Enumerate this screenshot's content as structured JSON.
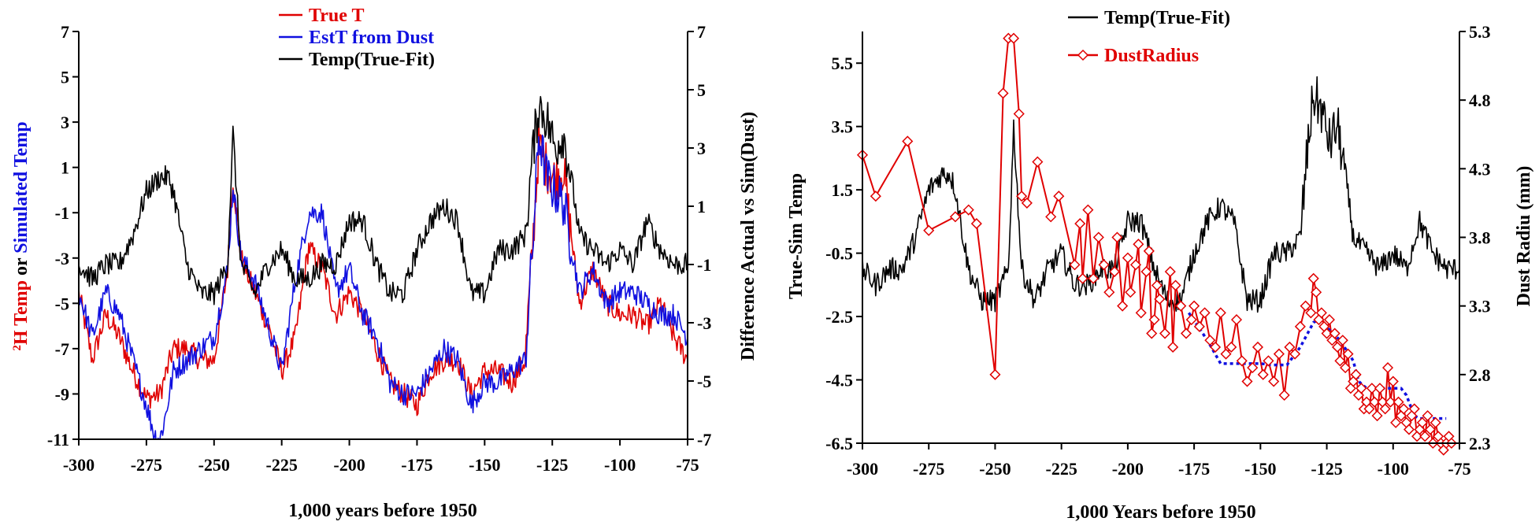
{
  "chart_data": [
    {
      "type": "line",
      "xlabel": "1,000 years before 1950",
      "ylabel_parts": [
        {
          "text": "2",
          "color": "#e00000",
          "superscript": true
        },
        {
          "text": "H Temp",
          "color": "#e00000"
        },
        {
          "text": " or ",
          "color": "#000000"
        },
        {
          "text": "Simulated Temp",
          "color": "#1010e0"
        }
      ],
      "y2label": "Difference Actual vs Sim(Dust)",
      "xlim": [
        -300,
        -75
      ],
      "ylim": [
        -11,
        7
      ],
      "y2lim": [
        -7,
        7
      ],
      "xticks": [
        -300,
        -275,
        -250,
        -225,
        -200,
        -175,
        -150,
        -125,
        -100,
        -75
      ],
      "yticks": [
        7,
        5,
        3,
        1,
        -1,
        -3,
        -5,
        -7,
        -9,
        -11
      ],
      "y2ticks": [
        7,
        5,
        3,
        1,
        -1,
        -3,
        -5,
        -7
      ],
      "legend_position": "top-center",
      "series": [
        {
          "name": "True T",
          "color": "#e00000",
          "axis": "left",
          "x": [
            -300,
            -295,
            -290,
            -285,
            -280,
            -275,
            -270,
            -265,
            -260,
            -255,
            -250,
            -245,
            -243,
            -240,
            -235,
            -230,
            -225,
            -220,
            -215,
            -210,
            -205,
            -200,
            -195,
            -190,
            -185,
            -180,
            -175,
            -170,
            -165,
            -160,
            -155,
            -150,
            -145,
            -140,
            -135,
            -132,
            -130,
            -127,
            -124,
            -121,
            -118,
            -115,
            -110,
            -105,
            -100,
            -95,
            -90,
            -85,
            -80,
            -75
          ],
          "y": [
            -4.5,
            -7.5,
            -5.5,
            -6.5,
            -8,
            -9.2,
            -9,
            -7,
            -7,
            -7.5,
            -7.5,
            -3.5,
            0.5,
            -3,
            -4.5,
            -6,
            -8,
            -6.5,
            -2.5,
            -3.5,
            -5.5,
            -4.5,
            -5.5,
            -7,
            -8.5,
            -9,
            -9.5,
            -8,
            -7.5,
            -7.5,
            -9,
            -8,
            -8,
            -8.5,
            -7.5,
            -2,
            2,
            1,
            0.5,
            1,
            -2,
            -5,
            -3.5,
            -5,
            -5.5,
            -5.5,
            -6,
            -5,
            -6.5,
            -7.5
          ]
        },
        {
          "name": "EstT from Dust",
          "color": "#1010e0",
          "axis": "left",
          "x": [
            -300,
            -295,
            -290,
            -285,
            -280,
            -275,
            -272,
            -270,
            -268,
            -265,
            -260,
            -255,
            -250,
            -245,
            -243,
            -240,
            -235,
            -230,
            -225,
            -220,
            -215,
            -210,
            -205,
            -200,
            -195,
            -190,
            -185,
            -180,
            -175,
            -170,
            -165,
            -160,
            -155,
            -150,
            -145,
            -140,
            -135,
            -132,
            -130,
            -127,
            -124,
            -121,
            -118,
            -115,
            -110,
            -105,
            -100,
            -95,
            -90,
            -85,
            -80,
            -75
          ],
          "y": [
            -4.5,
            -6.5,
            -4.5,
            -5.5,
            -7.5,
            -9.5,
            -10.8,
            -11,
            -10,
            -8,
            -7.5,
            -7,
            -6.5,
            -3.5,
            0.2,
            -3,
            -4,
            -6,
            -8,
            -4,
            -1,
            -1,
            -4.5,
            -3.5,
            -5.5,
            -6.5,
            -8.5,
            -9,
            -9,
            -8,
            -7,
            -7.5,
            -9.5,
            -8.5,
            -8.5,
            -8,
            -7.5,
            -2,
            2.5,
            0.5,
            0,
            -0.5,
            -2.5,
            -4.5,
            -3.5,
            -5,
            -4.5,
            -4.5,
            -5,
            -5.5,
            -5.5,
            -6.5
          ]
        },
        {
          "name": "Temp(True-Fit)",
          "color": "#000000",
          "axis": "right",
          "x": [
            -300,
            -295,
            -290,
            -285,
            -280,
            -275,
            -270,
            -267,
            -265,
            -260,
            -255,
            -250,
            -245,
            -243,
            -240,
            -235,
            -230,
            -225,
            -220,
            -215,
            -210,
            -205,
            -200,
            -195,
            -190,
            -185,
            -180,
            -175,
            -170,
            -165,
            -160,
            -155,
            -150,
            -145,
            -140,
            -135,
            -132,
            -130,
            -127,
            -124,
            -121,
            -118,
            -115,
            -110,
            -105,
            -100,
            -95,
            -90,
            -85,
            -80,
            -75
          ],
          "y": [
            -1,
            -1.5,
            -1,
            -1,
            0,
            1.5,
            2,
            2,
            1.5,
            -1,
            -2,
            -2,
            -1,
            3.5,
            -1,
            -2,
            -1,
            -0.5,
            -1.5,
            -1.5,
            -1,
            -1,
            0.5,
            0.5,
            -1,
            -2,
            -2,
            -0.5,
            0.5,
            1,
            0.5,
            -2,
            -2,
            -0.5,
            -0.5,
            0,
            3,
            4.5,
            4,
            3,
            3.5,
            2,
            0,
            -0.5,
            -1,
            -0.5,
            -1,
            0.5,
            -0.5,
            -1,
            -1
          ]
        }
      ]
    },
    {
      "type": "line",
      "xlabel": "1,000 Years before 1950",
      "ylabel": "True-Sim Temp",
      "y2label": "Dust Radiu (mm)",
      "xlim": [
        -300,
        -75
      ],
      "ylim": [
        -6.5,
        6.5
      ],
      "y2lim": [
        2.3,
        5.3
      ],
      "xticks": [
        -300,
        -275,
        -250,
        -225,
        -200,
        -175,
        -150,
        -125,
        -100,
        -75
      ],
      "yticks": [
        5.5,
        3.5,
        1.5,
        -0.5,
        -2.5,
        -4.5,
        -6.5
      ],
      "y2ticks": [
        5.3,
        4.8,
        4.3,
        3.8,
        3.3,
        2.8,
        2.3
      ],
      "legend_position": "top-center",
      "series": [
        {
          "name": "Temp(True-Fit)",
          "color": "#000000",
          "axis": "left",
          "x": [
            -300,
            -295,
            -290,
            -285,
            -280,
            -275,
            -270,
            -267,
            -265,
            -260,
            -255,
            -250,
            -245,
            -243,
            -240,
            -235,
            -230,
            -225,
            -220,
            -215,
            -210,
            -205,
            -200,
            -195,
            -190,
            -185,
            -180,
            -175,
            -170,
            -165,
            -160,
            -155,
            -150,
            -145,
            -140,
            -135,
            -132,
            -130,
            -127,
            -124,
            -121,
            -118,
            -115,
            -110,
            -105,
            -100,
            -95,
            -90,
            -85,
            -80,
            -75
          ],
          "y": [
            -1,
            -1.5,
            -1,
            -1,
            0,
            1.5,
            2,
            2,
            1.5,
            -1,
            -2,
            -2,
            -1,
            3.5,
            -1,
            -2,
            -1,
            -0.5,
            -1.5,
            -1.5,
            -1,
            -1,
            0.5,
            0.5,
            -1,
            -2,
            -2,
            -0.5,
            0.5,
            1,
            0.5,
            -2,
            -2,
            -0.5,
            -0.5,
            0,
            3,
            4.5,
            4,
            3,
            3.5,
            2,
            0,
            -0.5,
            -1,
            -0.5,
            -1,
            0.5,
            -0.5,
            -1,
            -1
          ]
        },
        {
          "name": "DustRadius",
          "color": "#e00000",
          "axis": "right",
          "marker": "diamond",
          "x": [
            -300,
            -295,
            -283,
            -275,
            -265,
            -260,
            -257,
            -250,
            -247,
            -245,
            -243,
            -241,
            -240,
            -238,
            -234,
            -229,
            -226,
            -220,
            -218,
            -217,
            -215,
            -213,
            -211,
            -209,
            -207,
            -205,
            -204,
            -202,
            -200,
            -199,
            -197,
            -196,
            -195,
            -193,
            -192,
            -191,
            -190,
            -189,
            -188,
            -186,
            -184,
            -183,
            -182,
            -180,
            -178,
            -176,
            -175,
            -173,
            -171,
            -169,
            -167,
            -165,
            -163,
            -161,
            -159,
            -157,
            -155,
            -153,
            -151,
            -149,
            -147,
            -145,
            -143,
            -141,
            -139,
            -137,
            -135,
            -133,
            -131,
            -130,
            -129,
            -128,
            -127,
            -126,
            -125,
            -124,
            -123,
            -122,
            -121,
            -120,
            -119,
            -118,
            -117,
            -116,
            -115,
            -114,
            -113,
            -112,
            -111,
            -110,
            -109,
            -108,
            -107,
            -106,
            -105,
            -104,
            -103,
            -102,
            -101,
            -100,
            -99,
            -98,
            -97,
            -96,
            -95,
            -94,
            -93,
            -92,
            -91,
            -90,
            -89,
            -88,
            -87,
            -86,
            -85,
            -84,
            -83,
            -82,
            -81,
            -80,
            -79,
            -78
          ],
          "y": [
            4.4,
            4.1,
            4.5,
            3.85,
            3.95,
            4,
            3.9,
            2.8,
            4.85,
            5.25,
            5.25,
            4.7,
            4.1,
            4.05,
            4.35,
            3.95,
            4.1,
            3.6,
            3.9,
            3.5,
            4,
            3.5,
            3.8,
            3.6,
            3.4,
            3.55,
            3.8,
            3.3,
            3.65,
            3.4,
            3.6,
            3.75,
            3.25,
            3.55,
            3.7,
            3.1,
            3.2,
            3.45,
            3.35,
            3.1,
            3.55,
            3.0,
            3.45,
            3.3,
            3.1,
            3.2,
            3.3,
            3.15,
            3.25,
            3.05,
            3.0,
            3.25,
            2.95,
            3.0,
            3.2,
            2.9,
            2.75,
            2.85,
            3.0,
            2.8,
            2.9,
            2.75,
            2.95,
            2.65,
            3.0,
            2.95,
            3.15,
            3.3,
            3.25,
            3.5,
            3.4,
            3.2,
            3.25,
            3.15,
            3.1,
            3.2,
            3.05,
            3.1,
            3.0,
            2.9,
            3.05,
            2.85,
            2.95,
            2.7,
            2.75,
            2.8,
            2.65,
            2.7,
            2.55,
            2.6,
            2.55,
            2.7,
            2.6,
            2.5,
            2.7,
            2.6,
            2.55,
            2.85,
            2.6,
            2.75,
            2.45,
            2.6,
            2.5,
            2.55,
            2.45,
            2.4,
            2.5,
            2.55,
            2.35,
            2.4,
            2.45,
            2.35,
            2.5,
            2.4,
            2.3,
            2.45,
            2.35,
            2.3,
            2.25,
            2.3,
            2.35,
            2.3
          ]
        },
        {
          "name": "",
          "color": "#1010e0",
          "axis": "right",
          "style": "dotted",
          "x": [
            -177,
            -170,
            -165,
            -150,
            -145,
            -140,
            -135,
            -130,
            -128,
            -120,
            -115,
            -113,
            -110,
            -97,
            -95,
            -92,
            -90,
            -85,
            -80
          ],
          "y": [
            3.25,
            3.05,
            2.88,
            2.88,
            2.87,
            2.87,
            3.0,
            3.18,
            3.2,
            3.05,
            2.9,
            2.75,
            2.7,
            2.7,
            2.65,
            2.5,
            2.48,
            2.48,
            2.48
          ]
        }
      ]
    }
  ]
}
